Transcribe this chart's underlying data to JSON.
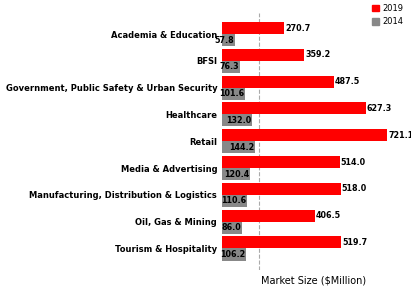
{
  "categories": [
    "Academia & Education",
    "BFSI",
    "Government, Public Safety & Urban Security",
    "Healthcare",
    "Retail",
    "Media & Advertising",
    "Manufacturing, Distribution & Logistics",
    "Oil, Gas & Mining",
    "Tourism & Hospitality"
  ],
  "values_2014": [
    57.8,
    76.3,
    101.6,
    132.0,
    144.2,
    120.4,
    110.6,
    86.0,
    106.2
  ],
  "values_2019": [
    270.7,
    359.2,
    487.5,
    627.3,
    721.1,
    514.0,
    518.0,
    406.5,
    519.7
  ],
  "color_2019": "#ff0000",
  "color_2014": "#888888",
  "xlabel": "Market Size ($Million)",
  "legend_2019": "2019",
  "legend_2014": "2014",
  "xlim": [
    0,
    800
  ],
  "bar_height": 0.45,
  "vline_x": 160,
  "background_color": "#ffffff",
  "label_fontsize": 6.0,
  "value_fontsize": 5.8,
  "xlabel_fontsize": 7.0
}
